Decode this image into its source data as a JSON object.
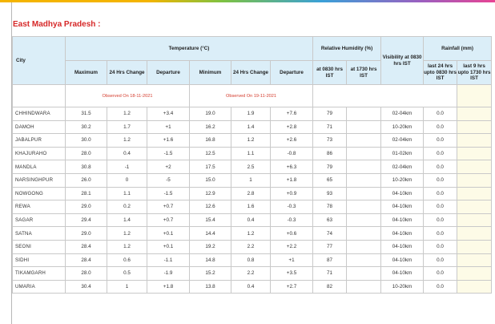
{
  "section_title": "East Madhya Pradesh :",
  "headers": {
    "city": "City",
    "temperature_group": "Temperature (°C)",
    "humidity_group": "Relative Humidity (%)",
    "visibility": "Visibility at 0830 hrs IST",
    "rainfall_group": "Rainfall (mm)",
    "max": "Maximum",
    "max_24h": "24 Hrs Change",
    "max_dep": "Departure",
    "min": "Minimum",
    "min_24h": "24 Hrs Change",
    "min_dep": "Departure",
    "rh_0830": "at 0830 hrs IST",
    "rh_1730": "at 1730 hrs IST",
    "rain_24": "last 24 hrs upto 0830 hrs IST",
    "rain_9": "last 9 hrs upto 1730 hrs IST"
  },
  "observed": {
    "max_note": "Observed On 18-11-2021",
    "min_note": "Observed On 19-11-2021"
  },
  "rows": [
    {
      "city": "CHHINDWARA",
      "max": "31.5",
      "max_chg": "1.2",
      "max_dep": "+3.4",
      "min": "19.0",
      "min_chg": "1.9",
      "min_dep": "+7.6",
      "rh_0830": "79",
      "rh_1730": "",
      "vis": "02-04km",
      "rain_24": "0.0",
      "rain_9": ""
    },
    {
      "city": "DAMOH",
      "max": "30.2",
      "max_chg": "1.7",
      "max_dep": "+1",
      "min": "16.2",
      "min_chg": "1.4",
      "min_dep": "+2.8",
      "rh_0830": "71",
      "rh_1730": "",
      "vis": "10-20km",
      "rain_24": "0.0",
      "rain_9": ""
    },
    {
      "city": "JABALPUR",
      "max": "30.0",
      "max_chg": "1.2",
      "max_dep": "+1.6",
      "min": "16.8",
      "min_chg": "1.2",
      "min_dep": "+2.6",
      "rh_0830": "73",
      "rh_1730": "",
      "vis": "02-04km",
      "rain_24": "0.0",
      "rain_9": ""
    },
    {
      "city": "KHAJURAHO",
      "max": "28.0",
      "max_chg": "0.4",
      "max_dep": "-1.5",
      "min": "12.5",
      "min_chg": "1.1",
      "min_dep": "-0.8",
      "rh_0830": "86",
      "rh_1730": "",
      "vis": "01-02km",
      "rain_24": "0.0",
      "rain_9": ""
    },
    {
      "city": "MANDLA",
      "max": "30.8",
      "max_chg": "-1",
      "max_dep": "+2",
      "min": "17.5",
      "min_chg": "2.5",
      "min_dep": "+6.3",
      "rh_0830": "79",
      "rh_1730": "",
      "vis": "02-04km",
      "rain_24": "0.0",
      "rain_9": ""
    },
    {
      "city": "NARSINGHPUR",
      "max": "26.0",
      "max_chg": "0",
      "max_dep": "-5",
      "min": "15.0",
      "min_chg": "1",
      "min_dep": "+1.8",
      "rh_0830": "65",
      "rh_1730": "",
      "vis": "10-20km",
      "rain_24": "0.0",
      "rain_9": ""
    },
    {
      "city": "NOWGONG",
      "max": "28.1",
      "max_chg": "1.1",
      "max_dep": "-1.5",
      "min": "12.9",
      "min_chg": "2.8",
      "min_dep": "+0.9",
      "rh_0830": "93",
      "rh_1730": "",
      "vis": "04-10km",
      "rain_24": "0.0",
      "rain_9": ""
    },
    {
      "city": "REWA",
      "max": "29.0",
      "max_chg": "0.2",
      "max_dep": "+0.7",
      "min": "12.6",
      "min_chg": "1.6",
      "min_dep": "-0.3",
      "rh_0830": "78",
      "rh_1730": "",
      "vis": "04-10km",
      "rain_24": "0.0",
      "rain_9": ""
    },
    {
      "city": "SAGAR",
      "max": "29.4",
      "max_chg": "1.4",
      "max_dep": "+0.7",
      "min": "15.4",
      "min_chg": "0.4",
      "min_dep": "-0.3",
      "rh_0830": "63",
      "rh_1730": "",
      "vis": "04-10km",
      "rain_24": "0.0",
      "rain_9": ""
    },
    {
      "city": "SATNA",
      "max": "29.0",
      "max_chg": "1.2",
      "max_dep": "+0.1",
      "min": "14.4",
      "min_chg": "1.2",
      "min_dep": "+0.6",
      "rh_0830": "74",
      "rh_1730": "",
      "vis": "04-10km",
      "rain_24": "0.0",
      "rain_9": ""
    },
    {
      "city": "SEONI",
      "max": "28.4",
      "max_chg": "1.2",
      "max_dep": "+0.1",
      "min": "19.2",
      "min_chg": "2.2",
      "min_dep": "+2.2",
      "rh_0830": "77",
      "rh_1730": "",
      "vis": "04-10km",
      "rain_24": "0.0",
      "rain_9": ""
    },
    {
      "city": "SIDHI",
      "max": "28.4",
      "max_chg": "0.6",
      "max_dep": "-1.1",
      "min": "14.8",
      "min_chg": "0.8",
      "min_dep": "+1",
      "rh_0830": "87",
      "rh_1730": "",
      "vis": "04-10km",
      "rain_24": "0.0",
      "rain_9": ""
    },
    {
      "city": "TIKAMGARH",
      "max": "28.0",
      "max_chg": "0.5",
      "max_dep": "-1.9",
      "min": "15.2",
      "min_chg": "2.2",
      "min_dep": "+3.5",
      "rh_0830": "71",
      "rh_1730": "",
      "vis": "04-10km",
      "rain_24": "0.0",
      "rain_9": ""
    },
    {
      "city": "UMARIA",
      "max": "30.4",
      "max_chg": "1",
      "max_dep": "+1.8",
      "min": "13.8",
      "min_chg": "0.4",
      "min_dep": "+2.7",
      "rh_0830": "82",
      "rh_1730": "",
      "vis": "10-20km",
      "rain_24": "0.0",
      "rain_9": ""
    }
  ]
}
